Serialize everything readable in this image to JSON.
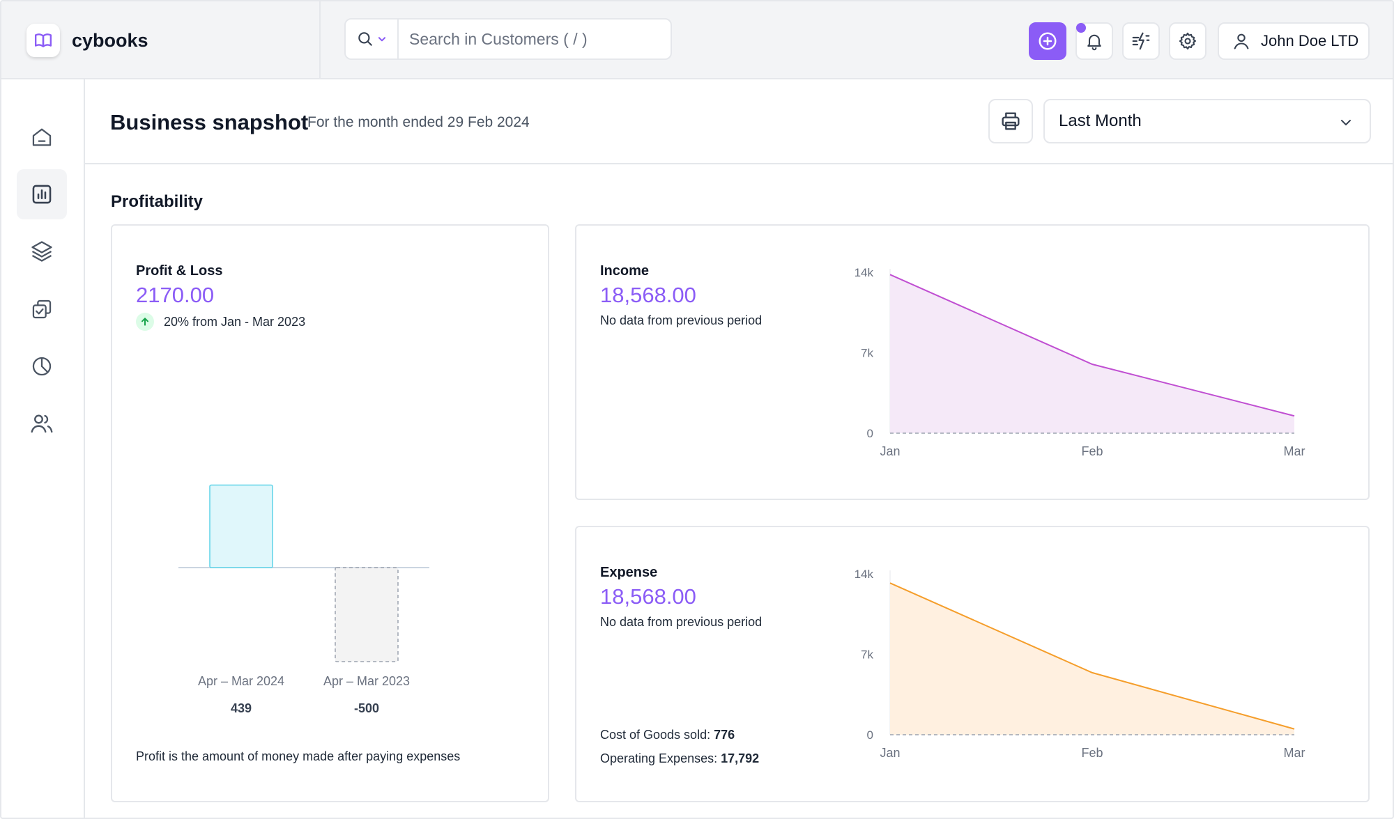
{
  "app": {
    "name": "cybooks"
  },
  "search": {
    "placeholder": "Search in Customers ( / )"
  },
  "user": {
    "name": "John Doe LTD"
  },
  "header": {
    "title": "Business snapshot",
    "subtitle": "For the month ended 29 Feb 2024",
    "period_selected": "Last Month"
  },
  "sidebar": {
    "items": [
      {
        "icon": "home-icon",
        "active": false
      },
      {
        "icon": "bar-chart-icon",
        "active": true
      },
      {
        "icon": "layers-icon",
        "active": false
      },
      {
        "icon": "copy-check-icon",
        "active": false
      },
      {
        "icon": "pie-chart-icon",
        "active": false
      },
      {
        "icon": "users-icon",
        "active": false
      }
    ]
  },
  "section": {
    "title": "Profitability"
  },
  "profit_loss": {
    "title": "Profit & Loss",
    "amount": "2170.00",
    "change_text": "20% from Jan - Mar 2023",
    "footnote": "Profit is the amount of money made after paying expenses"
  },
  "income": {
    "title": "Income",
    "amount": "18,568.00",
    "note": "No data from previous period"
  },
  "expense": {
    "title": "Expense",
    "amount": "18,568.00",
    "note": "No data from previous period",
    "cogs_label": "Cost of Goods sold:",
    "cogs_value": "776",
    "opex_label": "Operating Expenses:",
    "opex_value": "17,792"
  },
  "colors": {
    "accent": "#8b5cf6",
    "income_line": "#c04fd2",
    "income_fill": "#f5e9f8",
    "expense_line": "#f59e2b",
    "expense_fill": "#fff0e0",
    "positive_bar": "#e0f7fb",
    "positive_bar_border": "#5fd3e8",
    "negative_bar": "#f3f3f3"
  },
  "chart_data": [
    {
      "type": "bar",
      "name": "profit_loss",
      "categories": [
        "Apr – Mar 2024",
        "Apr – Mar 2023"
      ],
      "values": [
        439,
        -500
      ],
      "value_labels": [
        "439",
        "-500"
      ]
    },
    {
      "type": "area",
      "name": "income",
      "x": [
        "Jan",
        "Feb",
        "Mar"
      ],
      "values": [
        13800,
        6000,
        1500
      ],
      "ylim": [
        0,
        14000
      ],
      "yticks": [
        {
          "value": 14000,
          "label": "14k"
        },
        {
          "value": 7000,
          "label": "7k"
        },
        {
          "value": 0,
          "label": "0"
        }
      ]
    },
    {
      "type": "area",
      "name": "expense",
      "x": [
        "Jan",
        "Feb",
        "Mar"
      ],
      "values": [
        13200,
        5400,
        500
      ],
      "ylim": [
        0,
        14000
      ],
      "yticks": [
        {
          "value": 14000,
          "label": "14k"
        },
        {
          "value": 7000,
          "label": "7k"
        },
        {
          "value": 0,
          "label": "0"
        }
      ]
    }
  ]
}
